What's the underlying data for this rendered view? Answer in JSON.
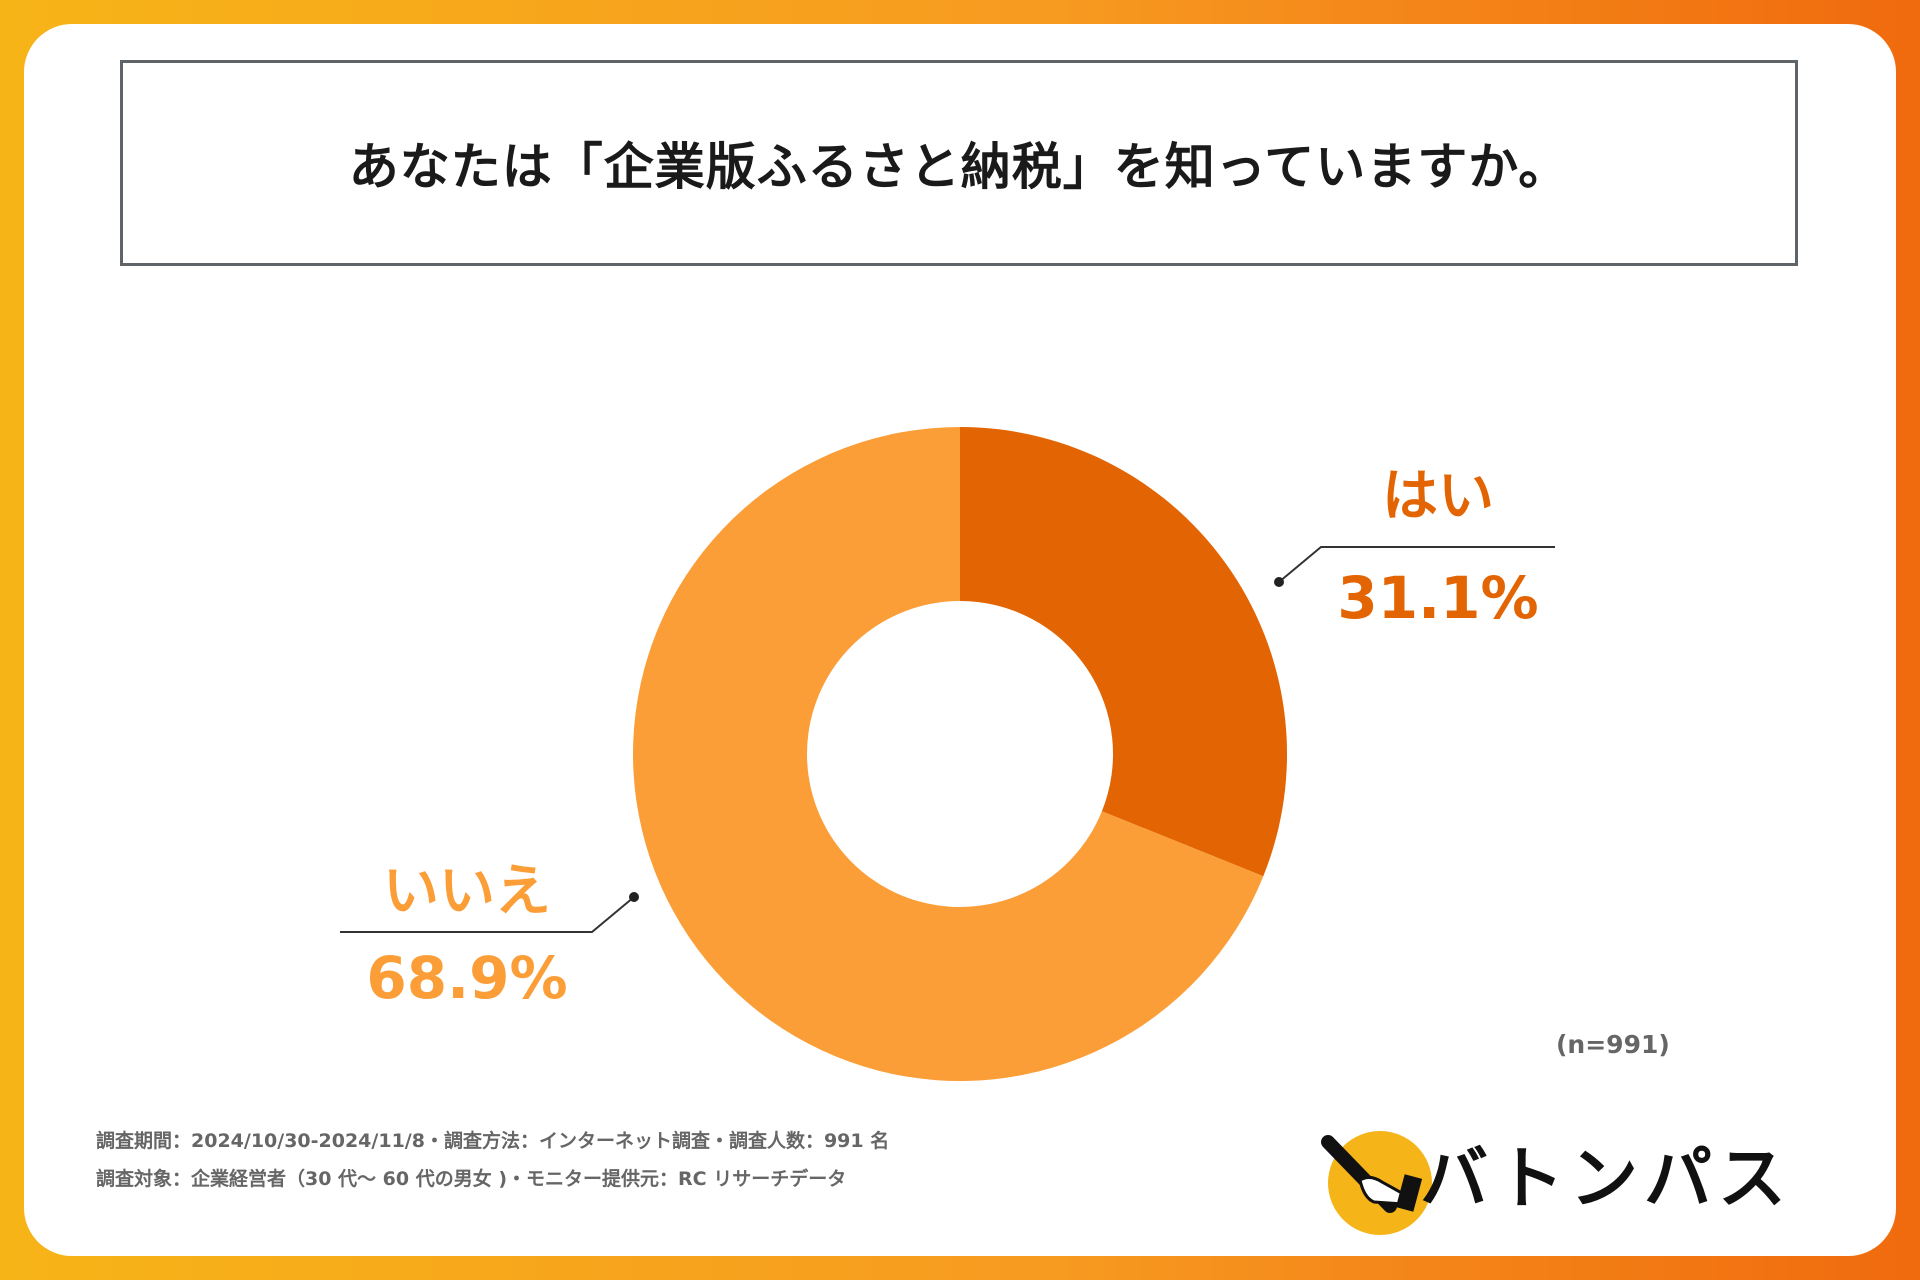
{
  "chart_data": {
    "type": "pie",
    "title": "あなたは「企業版ふるさと納税」を知っていますか。",
    "slices": [
      {
        "label": "はい",
        "value": 31.1,
        "value_label": "31.1%",
        "color": "#e36402"
      },
      {
        "label": "いいえ",
        "value": 68.9,
        "value_label": "68.9%",
        "color": "#fb9e38"
      }
    ],
    "sample_size": "(n=991)"
  },
  "notes": {
    "line1": "調査期間：2024/10/30-2024/11/8・調査方法：インターネット調査・調査人数：991 名",
    "line2": "調査対象：企業経営者（30 代～ 60 代の男女 )・モニター提供元：RC リサーチデータ"
  },
  "logo": {
    "text": "バトンパス",
    "circle_color": "#f5b418"
  }
}
